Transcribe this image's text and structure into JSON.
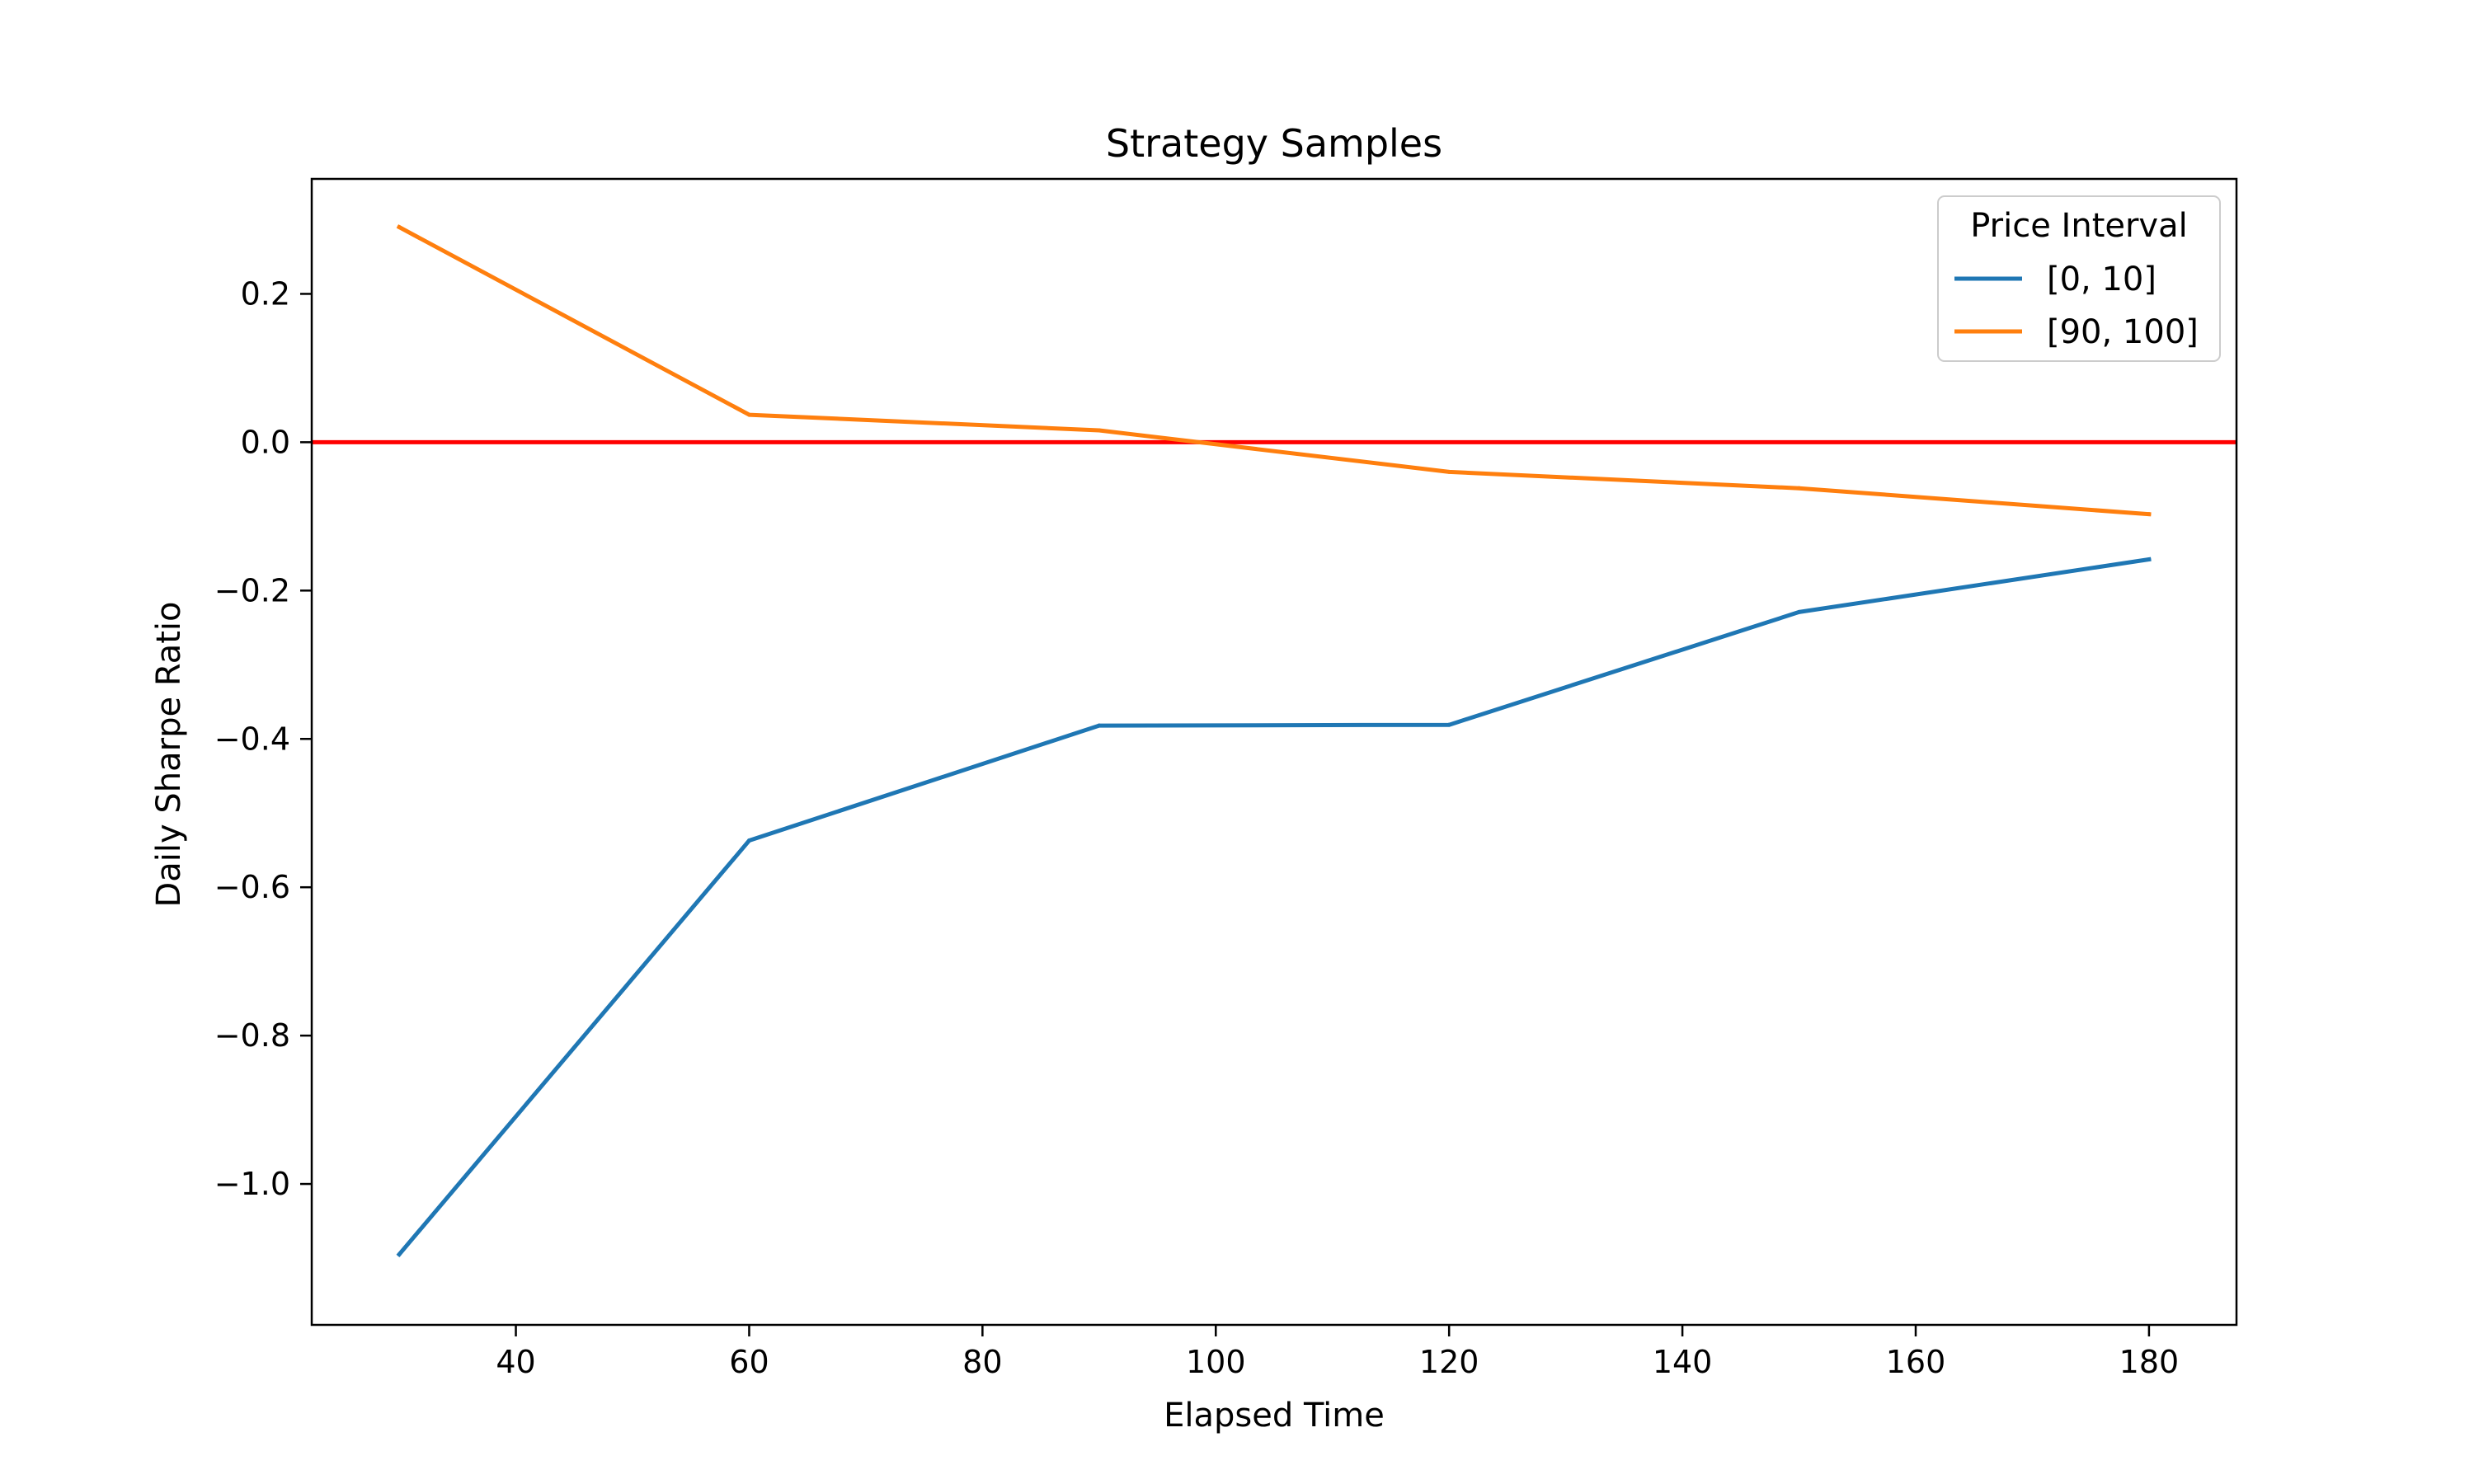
{
  "chart_data": {
    "type": "line",
    "title": "Strategy Samples",
    "xlabel": "Elapsed Time",
    "ylabel": "Daily Sharpe Ratio",
    "x": [
      30,
      60,
      90,
      120,
      150,
      180
    ],
    "xlim": [
      22.5,
      187.5
    ],
    "ylim": [
      -1.19,
      0.355
    ],
    "xticks": [
      40,
      60,
      80,
      100,
      120,
      140,
      160,
      180
    ],
    "xtick_labels": [
      "40",
      "60",
      "80",
      "100",
      "120",
      "140",
      "160",
      "180"
    ],
    "yticks": [
      0.2,
      0.0,
      -0.2,
      -0.4,
      -0.6,
      -0.8,
      -1.0
    ],
    "ytick_labels": [
      "0.2",
      "0.0",
      "−0.2",
      "−0.4",
      "−0.6",
      "−0.8",
      "−1.0"
    ],
    "grid": false,
    "series": [
      {
        "name": "[0, 10]",
        "color": "#1f77b4",
        "values": [
          -1.095,
          -0.537,
          -0.382,
          -0.381,
          -0.229,
          -0.158
        ]
      },
      {
        "name": "[90, 100]",
        "color": "#ff7f0e",
        "values": [
          0.29,
          0.037,
          0.016,
          -0.04,
          -0.062,
          -0.097
        ]
      }
    ],
    "reference_line": {
      "y": 0.0,
      "color": "#ff0000"
    },
    "legend": {
      "title": "Price Interval",
      "placement": "top-right"
    }
  }
}
